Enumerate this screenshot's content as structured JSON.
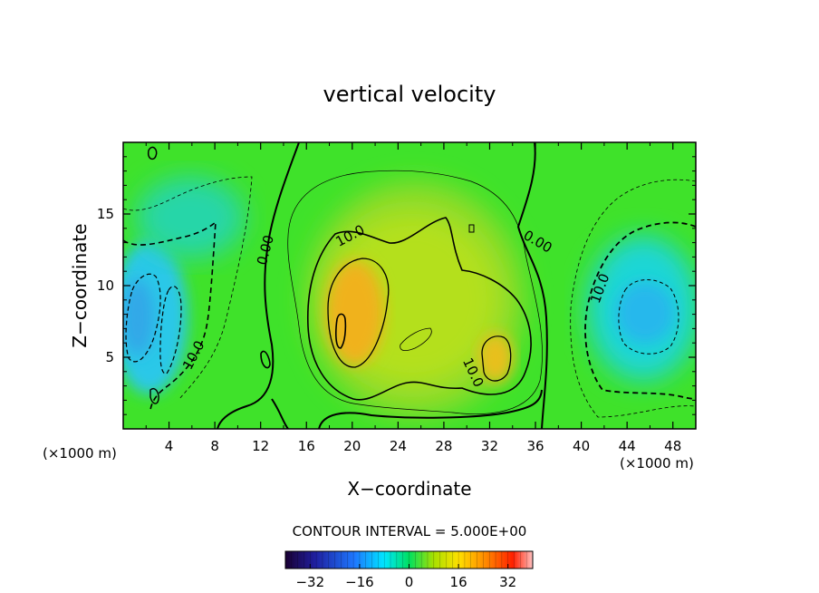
{
  "chart_data": {
    "type": "heatmap",
    "title": "vertical velocity",
    "xlabel": "X−coordinate",
    "ylabel": "Z−coordinate",
    "x_unit": "(×1000 m)",
    "z_unit": "(×1000 m)",
    "xlim": [
      0,
      50
    ],
    "ylim": [
      0,
      20
    ],
    "x_ticks": [
      4,
      8,
      12,
      16,
      20,
      24,
      28,
      32,
      36,
      40,
      44,
      48
    ],
    "y_ticks": [
      5,
      10,
      15
    ],
    "contour_interval_text": "CONTOUR INTERVAL = 5.000E+00",
    "colorbar": {
      "range": [
        -40,
        40
      ],
      "ticks": [
        -32,
        -16,
        0,
        16,
        32
      ]
    },
    "contour_labels": [
      {
        "text": "0.00",
        "x": 12.8,
        "z": 12.4,
        "angle": -75
      },
      {
        "text": "10.0",
        "x": 20.0,
        "z": 13.2,
        "angle": -28
      },
      {
        "text": "0.00",
        "x": 36.0,
        "z": 12.8,
        "angle": 30
      },
      {
        "text": "10.0",
        "x": 42.0,
        "z": 9.7,
        "angle": -70
      },
      {
        "text": "10.0",
        "x": 6.5,
        "z": 5.0,
        "angle": -62
      },
      {
        "text": "10.0",
        "x": 30.2,
        "z": 3.8,
        "angle": 65
      }
    ],
    "features": [
      {
        "kind": "updraft",
        "x": 25.5,
        "z": 7.5,
        "peak": 22
      },
      {
        "kind": "updraft-core",
        "x": 20.0,
        "z": 8.5,
        "peak": 24
      },
      {
        "kind": "updraft-core",
        "x": 32.5,
        "z": 5.0,
        "peak": 20
      },
      {
        "kind": "downdraft",
        "x": 1.5,
        "z": 7.5,
        "peak": -20
      },
      {
        "kind": "downdraft",
        "x": 47.0,
        "z": 8.0,
        "peak": -17
      }
    ]
  }
}
